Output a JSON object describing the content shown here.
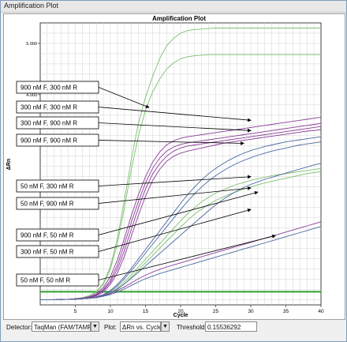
{
  "window": {
    "title": "Amplification Plot"
  },
  "chart_data": {
    "type": "line",
    "title": "Amplification Plot",
    "xlabel": "Cycle",
    "ylabel": "ΔRn",
    "xlim": [
      0,
      40
    ],
    "ylim": [
      -0.1,
      5.4
    ],
    "x_ticks": [
      5,
      10,
      15,
      20,
      25,
      30,
      35,
      40
    ],
    "y_ticks": [
      4.0,
      5.0
    ],
    "y_tick_labels": [
      "4.000",
      "5.000"
    ],
    "grid": true,
    "threshold": 0.15536292,
    "threshold_color": "#2e9e2e",
    "colors": {
      "green": "#7cc070",
      "purple": "#8a3a98",
      "blue": "#4a6aa0"
    },
    "x": [
      0,
      2,
      4,
      5,
      6,
      7,
      8,
      9,
      10,
      11,
      12,
      13,
      14,
      15,
      16,
      17,
      18,
      19,
      20,
      21,
      22,
      23,
      24,
      25,
      26,
      27,
      28,
      29,
      30,
      31,
      32,
      33,
      34,
      35,
      36,
      37,
      38,
      39,
      40
    ],
    "series": [
      {
        "color": "green",
        "values": [
          0,
          0,
          0.01,
          0.02,
          0.04,
          0.08,
          0.16,
          0.32,
          0.65,
          1.2,
          1.95,
          2.75,
          3.45,
          3.95,
          4.35,
          4.7,
          4.95,
          5.1,
          5.2,
          5.25,
          5.27,
          5.28,
          5.29,
          5.3,
          5.3,
          5.3,
          5.3,
          5.3,
          5.3,
          5.3,
          5.3,
          5.3,
          5.3,
          5.3,
          5.3,
          5.3,
          5.3,
          5.3,
          5.3
        ]
      },
      {
        "color": "green",
        "values": [
          0,
          0,
          0.01,
          0.02,
          0.04,
          0.08,
          0.15,
          0.3,
          0.6,
          1.1,
          1.8,
          2.55,
          3.2,
          3.7,
          4.05,
          4.3,
          4.5,
          4.62,
          4.7,
          4.74,
          4.76,
          4.77,
          4.78,
          4.78,
          4.78,
          4.78,
          4.78,
          4.78,
          4.78,
          4.78,
          4.78,
          4.78,
          4.78,
          4.78,
          4.78,
          4.78,
          4.78,
          4.78,
          4.78
        ]
      },
      {
        "color": "purple",
        "values": [
          0,
          0,
          0.01,
          0.02,
          0.03,
          0.06,
          0.12,
          0.24,
          0.45,
          0.78,
          1.2,
          1.65,
          2.05,
          2.4,
          2.68,
          2.88,
          3.02,
          3.1,
          3.15,
          3.18,
          3.2,
          3.22,
          3.24,
          3.26,
          3.28,
          3.3,
          3.32,
          3.34,
          3.36,
          3.38,
          3.4,
          3.42,
          3.44,
          3.46,
          3.48,
          3.5,
          3.52,
          3.54,
          3.56
        ]
      },
      {
        "color": "purple",
        "values": [
          0,
          0,
          0.01,
          0.02,
          0.03,
          0.05,
          0.1,
          0.2,
          0.38,
          0.68,
          1.08,
          1.52,
          1.92,
          2.28,
          2.56,
          2.76,
          2.9,
          2.98,
          3.03,
          3.06,
          3.08,
          3.1,
          3.12,
          3.14,
          3.16,
          3.18,
          3.2,
          3.22,
          3.24,
          3.26,
          3.28,
          3.3,
          3.32,
          3.34,
          3.36,
          3.38,
          3.4,
          3.42,
          3.44
        ]
      },
      {
        "color": "purple",
        "values": [
          0,
          0,
          0.01,
          0.02,
          0.03,
          0.05,
          0.09,
          0.18,
          0.34,
          0.6,
          0.96,
          1.38,
          1.8,
          2.16,
          2.45,
          2.65,
          2.8,
          2.9,
          2.96,
          3.0,
          3.02,
          3.04,
          3.06,
          3.08,
          3.1,
          3.12,
          3.14,
          3.16,
          3.18,
          3.2,
          3.22,
          3.24,
          3.26,
          3.28,
          3.3,
          3.32,
          3.34,
          3.36,
          3.38
        ]
      },
      {
        "color": "purple",
        "values": [
          0,
          0,
          0.01,
          0.01,
          0.02,
          0.04,
          0.08,
          0.15,
          0.3,
          0.52,
          0.85,
          1.25,
          1.65,
          2.02,
          2.32,
          2.54,
          2.7,
          2.8,
          2.86,
          2.9,
          2.93,
          2.96,
          2.99,
          3.02,
          3.05,
          3.07,
          3.09,
          3.11,
          3.13,
          3.15,
          3.17,
          3.19,
          3.21,
          3.23,
          3.25,
          3.27,
          3.29,
          3.3,
          3.32
        ]
      },
      {
        "color": "blue",
        "values": [
          0,
          0,
          0.01,
          0.01,
          0.02,
          0.03,
          0.06,
          0.1,
          0.18,
          0.3,
          0.45,
          0.62,
          0.8,
          0.98,
          1.16,
          1.34,
          1.52,
          1.7,
          1.88,
          2.05,
          2.2,
          2.34,
          2.46,
          2.56,
          2.65,
          2.73,
          2.8,
          2.86,
          2.91,
          2.95,
          2.99,
          3.02,
          3.05,
          3.08,
          3.1,
          3.12,
          3.14,
          3.16,
          3.18
        ]
      },
      {
        "color": "blue",
        "values": [
          0,
          0,
          0.01,
          0.01,
          0.02,
          0.03,
          0.05,
          0.09,
          0.16,
          0.27,
          0.41,
          0.57,
          0.74,
          0.91,
          1.08,
          1.25,
          1.42,
          1.59,
          1.76,
          1.92,
          2.07,
          2.2,
          2.32,
          2.42,
          2.51,
          2.59,
          2.66,
          2.72,
          2.77,
          2.82,
          2.86,
          2.9,
          2.93,
          2.96,
          2.99,
          3.02,
          3.04,
          3.06,
          3.08
        ]
      },
      {
        "color": "green",
        "values": [
          0,
          0,
          0.01,
          0.01,
          0.02,
          0.03,
          0.05,
          0.08,
          0.14,
          0.23,
          0.35,
          0.49,
          0.64,
          0.79,
          0.94,
          1.09,
          1.24,
          1.39,
          1.54,
          1.68,
          1.8,
          1.91,
          2.0,
          2.08,
          2.14,
          2.2,
          2.25,
          2.29,
          2.33,
          2.36,
          2.39,
          2.42,
          2.44,
          2.46,
          2.48,
          2.5,
          2.52,
          2.54,
          2.56
        ]
      },
      {
        "color": "green",
        "values": [
          0,
          0,
          0.01,
          0.01,
          0.02,
          0.03,
          0.04,
          0.07,
          0.12,
          0.2,
          0.31,
          0.44,
          0.58,
          0.72,
          0.86,
          1.0,
          1.14,
          1.28,
          1.42,
          1.55,
          1.67,
          1.77,
          1.86,
          1.94,
          2.0,
          2.06,
          2.11,
          2.16,
          2.2,
          2.24,
          2.28,
          2.31,
          2.34,
          2.37,
          2.4,
          2.43,
          2.46,
          2.48,
          2.5
        ]
      },
      {
        "color": "blue",
        "values": [
          0,
          0,
          0.01,
          0.01,
          0.02,
          0.03,
          0.05,
          0.08,
          0.13,
          0.21,
          0.31,
          0.42,
          0.54,
          0.66,
          0.78,
          0.9,
          1.02,
          1.14,
          1.26,
          1.38,
          1.5,
          1.62,
          1.74,
          1.85,
          1.95,
          2.04,
          2.12,
          2.19,
          2.25,
          2.3,
          2.35,
          2.39,
          2.43,
          2.47,
          2.51,
          2.55,
          2.59,
          2.63,
          2.66
        ]
      },
      {
        "color": "purple",
        "values": [
          0,
          0,
          0.01,
          0.01,
          0.02,
          0.03,
          0.05,
          0.08,
          0.12,
          0.18,
          0.25,
          0.33,
          0.41,
          0.48,
          0.54,
          0.59,
          0.64,
          0.68,
          0.72,
          0.76,
          0.8,
          0.84,
          0.88,
          0.92,
          0.96,
          1.0,
          1.04,
          1.08,
          1.12,
          1.16,
          1.2,
          1.24,
          1.28,
          1.32,
          1.36,
          1.4,
          1.44,
          1.48,
          1.52
        ]
      },
      {
        "color": "blue",
        "values": [
          0,
          0,
          0.01,
          0.01,
          0.02,
          0.03,
          0.04,
          0.07,
          0.1,
          0.15,
          0.21,
          0.28,
          0.35,
          0.41,
          0.46,
          0.51,
          0.55,
          0.59,
          0.63,
          0.67,
          0.71,
          0.75,
          0.79,
          0.83,
          0.87,
          0.91,
          0.95,
          0.99,
          1.03,
          1.07,
          1.11,
          1.15,
          1.19,
          1.23,
          1.27,
          1.31,
          1.35,
          1.39,
          1.43
        ]
      }
    ],
    "annotations": [
      {
        "label": "900 nM F, 300 nM R",
        "target": [
          15.5,
          3.75
        ]
      },
      {
        "label": "300 nM F, 300 nM R",
        "target": [
          30,
          3.5
        ]
      },
      {
        "label": "300 nM F, 900 nM R",
        "target": [
          30,
          3.3
        ]
      },
      {
        "label": "900 nM F, 900 nM R",
        "target": [
          29,
          3.05
        ]
      },
      {
        "label": "50 nM F, 300 nM R",
        "target": [
          30,
          2.4
        ]
      },
      {
        "label": "50 nM F, 900 nM R",
        "target": [
          30,
          2.18
        ]
      },
      {
        "label": "900 nM F, 50 nM R",
        "target": [
          31,
          2.1
        ]
      },
      {
        "label": "300 nM F, 50 nM R",
        "target": [
          30,
          1.76
        ]
      },
      {
        "label": "50 nM F, 50 nM R",
        "target": [
          33.5,
          1.25
        ]
      }
    ]
  },
  "toolbar": {
    "detector_label": "Detector:",
    "detector_value": "TaqMan (FAM/TAMRA)",
    "plot_label": "Plot:",
    "plot_value": "ΔRn vs. Cycle",
    "threshold_label": "Threshold:",
    "threshold_value": "0.15536292"
  }
}
